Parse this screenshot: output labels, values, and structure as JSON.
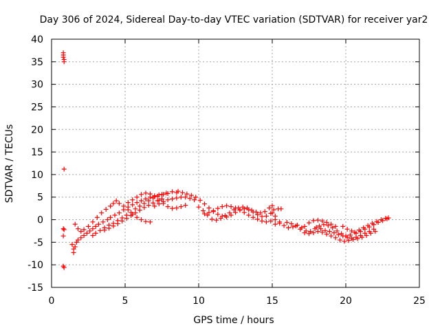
{
  "chart_data": {
    "type": "scatter",
    "title": "Day 306 of 2024, Sidereal Day-to-day VTEC variation (SDTVAR) for receiver yar2",
    "xlabel": "GPS time / hours",
    "ylabel": "SDTVAR / TECUs",
    "xlim": [
      0,
      25
    ],
    "ylim": [
      -15,
      40
    ],
    "xticks": [
      "0",
      "5",
      "10",
      "15",
      "20",
      "25"
    ],
    "yticks": [
      "-15",
      "-10",
      "-5",
      "0",
      "5",
      "10",
      "15",
      "20",
      "25",
      "30",
      "35",
      "40"
    ],
    "xtick_values": [
      0,
      5,
      10,
      15,
      20,
      25
    ],
    "ytick_values": [
      -15,
      -10,
      -5,
      0,
      5,
      10,
      15,
      20,
      25,
      30,
      35,
      40
    ],
    "grid": true,
    "marker": "+",
    "marker_color": "#ff0000",
    "series": [
      {
        "name": "yar2",
        "points": [
          [
            0.8,
            37.0
          ],
          [
            0.8,
            36.5
          ],
          [
            0.8,
            36.0
          ],
          [
            0.85,
            35.5
          ],
          [
            0.85,
            35.0
          ],
          [
            0.85,
            11.2
          ],
          [
            0.8,
            -2.0
          ],
          [
            0.85,
            -2.2
          ],
          [
            0.8,
            -3.6
          ],
          [
            0.8,
            -10.3
          ],
          [
            0.85,
            -10.6
          ],
          [
            1.4,
            -5.5
          ],
          [
            1.5,
            -6.5
          ],
          [
            1.5,
            -7.3
          ],
          [
            1.6,
            -6.0
          ],
          [
            1.7,
            -5.0
          ],
          [
            1.8,
            -4.5
          ],
          [
            2.0,
            -4.0
          ],
          [
            2.2,
            -3.5
          ],
          [
            2.4,
            -3.0
          ],
          [
            2.6,
            -2.5
          ],
          [
            2.8,
            -2.0
          ],
          [
            3.0,
            -1.5
          ],
          [
            3.2,
            -1.0
          ],
          [
            3.5,
            -0.5
          ],
          [
            3.8,
            0.0
          ],
          [
            4.0,
            0.5
          ],
          [
            4.3,
            1.0
          ],
          [
            4.6,
            1.5
          ],
          [
            4.9,
            2.2
          ],
          [
            5.2,
            2.8
          ],
          [
            5.5,
            3.3
          ],
          [
            5.8,
            3.8
          ],
          [
            6.1,
            4.2
          ],
          [
            6.4,
            4.6
          ],
          [
            6.7,
            5.0
          ],
          [
            7.0,
            5.3
          ],
          [
            7.3,
            5.5
          ],
          [
            7.6,
            5.6
          ],
          [
            7.9,
            5.8
          ],
          [
            8.2,
            6.2
          ],
          [
            8.5,
            6.0
          ],
          [
            1.6,
            -1.0
          ],
          [
            1.8,
            -2.0
          ],
          [
            2.0,
            -2.6
          ],
          [
            2.2,
            -2.2
          ],
          [
            2.5,
            -1.5
          ],
          [
            2.8,
            -0.5
          ],
          [
            3.1,
            0.5
          ],
          [
            3.4,
            1.5
          ],
          [
            3.7,
            2.3
          ],
          [
            4.0,
            3.0
          ],
          [
            4.2,
            3.6
          ],
          [
            4.4,
            4.2
          ],
          [
            2.8,
            -3.5
          ],
          [
            3.0,
            -3.0
          ],
          [
            3.3,
            -2.4
          ],
          [
            3.6,
            -1.8
          ],
          [
            3.9,
            -1.2
          ],
          [
            4.2,
            -0.8
          ],
          [
            4.5,
            -0.2
          ],
          [
            4.8,
            0.4
          ],
          [
            5.1,
            1.0
          ],
          [
            5.4,
            1.6
          ],
          [
            5.7,
            2.4
          ],
          [
            6.0,
            3.0
          ],
          [
            6.3,
            3.6
          ],
          [
            6.6,
            4.2
          ],
          [
            6.9,
            4.8
          ],
          [
            7.2,
            5.2
          ],
          [
            7.5,
            5.6
          ],
          [
            7.8,
            5.9
          ],
          [
            3.6,
            -2.3
          ],
          [
            3.9,
            -1.9
          ],
          [
            4.2,
            -1.4
          ],
          [
            4.5,
            -0.9
          ],
          [
            4.8,
            -0.3
          ],
          [
            5.1,
            0.3
          ],
          [
            5.4,
            0.9
          ],
          [
            5.7,
            1.5
          ],
          [
            6.0,
            2.1
          ],
          [
            6.3,
            2.7
          ],
          [
            6.6,
            3.2
          ],
          [
            6.9,
            3.7
          ],
          [
            7.2,
            4.2
          ],
          [
            7.5,
            4.6
          ],
          [
            4.6,
            3.6
          ],
          [
            4.9,
            3.0
          ],
          [
            5.2,
            2.2
          ],
          [
            5.5,
            1.2
          ],
          [
            5.8,
            0.5
          ],
          [
            6.1,
            0.0
          ],
          [
            6.4,
            -0.4
          ],
          [
            6.7,
            -0.5
          ],
          [
            5.2,
            3.8
          ],
          [
            5.5,
            4.4
          ],
          [
            5.8,
            5.0
          ],
          [
            6.1,
            5.6
          ],
          [
            6.4,
            5.9
          ],
          [
            6.7,
            5.7
          ],
          [
            7.0,
            5.1
          ],
          [
            7.3,
            4.3
          ],
          [
            7.6,
            3.6
          ],
          [
            7.9,
            2.9
          ],
          [
            8.2,
            2.5
          ],
          [
            8.5,
            2.6
          ],
          [
            8.8,
            2.9
          ],
          [
            9.1,
            3.2
          ],
          [
            7.0,
            3.0
          ],
          [
            7.3,
            3.5
          ],
          [
            7.6,
            4.0
          ],
          [
            7.9,
            4.4
          ],
          [
            8.2,
            4.6
          ],
          [
            8.5,
            4.8
          ],
          [
            8.8,
            5.0
          ],
          [
            9.1,
            5.0
          ],
          [
            9.4,
            4.7
          ],
          [
            9.7,
            4.4
          ],
          [
            8.6,
            6.3
          ],
          [
            8.9,
            6.0
          ],
          [
            9.2,
            5.7
          ],
          [
            9.5,
            5.4
          ],
          [
            9.8,
            5.0
          ],
          [
            10.1,
            4.3
          ],
          [
            10.4,
            3.5
          ],
          [
            10.7,
            2.6
          ],
          [
            11.0,
            1.8
          ],
          [
            11.3,
            1.2
          ],
          [
            11.6,
            0.8
          ],
          [
            11.9,
            0.6
          ],
          [
            12.2,
            1.0
          ],
          [
            12.5,
            1.6
          ],
          [
            12.8,
            2.1
          ],
          [
            13.1,
            2.4
          ],
          [
            13.4,
            2.2
          ],
          [
            13.7,
            1.7
          ],
          [
            14.0,
            1.1
          ],
          [
            14.3,
            0.7
          ],
          [
            14.6,
            0.8
          ],
          [
            14.9,
            1.4
          ],
          [
            15.1,
            2.2
          ],
          [
            10.0,
            2.8
          ],
          [
            10.3,
            2.0
          ],
          [
            10.6,
            1.0
          ],
          [
            10.9,
            0.1
          ],
          [
            11.2,
            -0.1
          ],
          [
            11.5,
            0.3
          ],
          [
            11.8,
            0.9
          ],
          [
            12.1,
            1.5
          ],
          [
            12.4,
            2.2
          ],
          [
            12.7,
            2.6
          ],
          [
            13.0,
            2.8
          ],
          [
            13.3,
            2.6
          ],
          [
            13.6,
            2.1
          ],
          [
            13.9,
            1.7
          ],
          [
            14.2,
            1.5
          ],
          [
            14.5,
            1.8
          ],
          [
            14.8,
            2.6
          ],
          [
            15.0,
            3.1
          ],
          [
            10.4,
            1.3
          ],
          [
            10.7,
            1.6
          ],
          [
            11.0,
            2.0
          ],
          [
            11.3,
            2.5
          ],
          [
            11.6,
            2.9
          ],
          [
            11.9,
            3.1
          ],
          [
            12.2,
            2.9
          ],
          [
            12.5,
            2.6
          ],
          [
            12.8,
            2.2
          ],
          [
            13.1,
            1.6
          ],
          [
            13.4,
            1.0
          ],
          [
            13.7,
            0.5
          ],
          [
            14.0,
            0.1
          ],
          [
            14.3,
            -0.3
          ],
          [
            14.6,
            -0.5
          ],
          [
            14.9,
            -0.3
          ],
          [
            15.0,
            1.5
          ],
          [
            15.2,
            0.8
          ],
          [
            15.4,
            2.4
          ],
          [
            15.6,
            2.4
          ],
          [
            15.5,
            -0.5
          ],
          [
            15.2,
            -1.0
          ],
          [
            15.2,
            0.0
          ],
          [
            15.5,
            -0.8
          ],
          [
            15.8,
            -1.3
          ],
          [
            16.1,
            -1.8
          ],
          [
            16.4,
            -1.6
          ],
          [
            16.7,
            -1.2
          ],
          [
            17.0,
            -1.8
          ],
          [
            17.3,
            -2.5
          ],
          [
            17.6,
            -2.6
          ],
          [
            17.9,
            -2.0
          ],
          [
            18.2,
            -1.4
          ],
          [
            18.5,
            -1.1
          ],
          [
            18.8,
            -1.3
          ],
          [
            19.1,
            -1.8
          ],
          [
            19.4,
            -2.5
          ],
          [
            19.7,
            -3.1
          ],
          [
            20.0,
            -3.6
          ],
          [
            20.3,
            -3.4
          ],
          [
            20.6,
            -2.8
          ],
          [
            20.9,
            -2.3
          ],
          [
            21.2,
            -1.8
          ],
          [
            21.5,
            -1.3
          ],
          [
            21.8,
            -0.8
          ],
          [
            22.1,
            -0.4
          ],
          [
            22.4,
            0.0
          ],
          [
            22.7,
            0.3
          ],
          [
            22.9,
            0.4
          ],
          [
            16.0,
            -0.6
          ],
          [
            16.3,
            -0.9
          ],
          [
            16.6,
            -1.4
          ],
          [
            16.9,
            -2.1
          ],
          [
            17.2,
            -1.5
          ],
          [
            17.5,
            -0.7
          ],
          [
            17.8,
            -0.2
          ],
          [
            18.1,
            -0.1
          ],
          [
            18.4,
            -0.3
          ],
          [
            18.7,
            -0.6
          ],
          [
            19.0,
            -1.0
          ],
          [
            19.3,
            -1.5
          ],
          [
            17.2,
            -2.9
          ],
          [
            17.5,
            -3.1
          ],
          [
            17.8,
            -2.9
          ],
          [
            18.1,
            -2.6
          ],
          [
            18.4,
            -2.8
          ],
          [
            18.7,
            -3.2
          ],
          [
            19.0,
            -3.6
          ],
          [
            19.3,
            -4.0
          ],
          [
            19.6,
            -4.5
          ],
          [
            19.9,
            -4.8
          ],
          [
            20.2,
            -4.6
          ],
          [
            20.5,
            -4.4
          ],
          [
            20.8,
            -4.2
          ],
          [
            21.1,
            -3.9
          ],
          [
            21.4,
            -3.5
          ],
          [
            21.7,
            -3.0
          ],
          [
            22.0,
            -2.6
          ],
          [
            18.0,
            -1.7
          ],
          [
            18.3,
            -2.0
          ],
          [
            18.6,
            -2.4
          ],
          [
            18.9,
            -2.6
          ],
          [
            19.2,
            -2.9
          ],
          [
            19.5,
            -3.3
          ],
          [
            19.8,
            -3.6
          ],
          [
            20.1,
            -3.9
          ],
          [
            20.4,
            -4.1
          ],
          [
            20.7,
            -3.9
          ],
          [
            21.0,
            -3.5
          ],
          [
            21.3,
            -3.0
          ],
          [
            21.6,
            -2.6
          ],
          [
            21.9,
            -2.1
          ],
          [
            19.8,
            -1.5
          ],
          [
            20.1,
            -2.1
          ],
          [
            20.4,
            -2.5
          ],
          [
            20.7,
            -3.0
          ],
          [
            21.0,
            -2.6
          ],
          [
            21.3,
            -2.1
          ],
          [
            21.6,
            -1.6
          ],
          [
            21.9,
            -1.1
          ],
          [
            22.2,
            -0.6
          ],
          [
            22.5,
            -0.2
          ],
          [
            22.8,
            0.2
          ]
        ]
      }
    ]
  }
}
